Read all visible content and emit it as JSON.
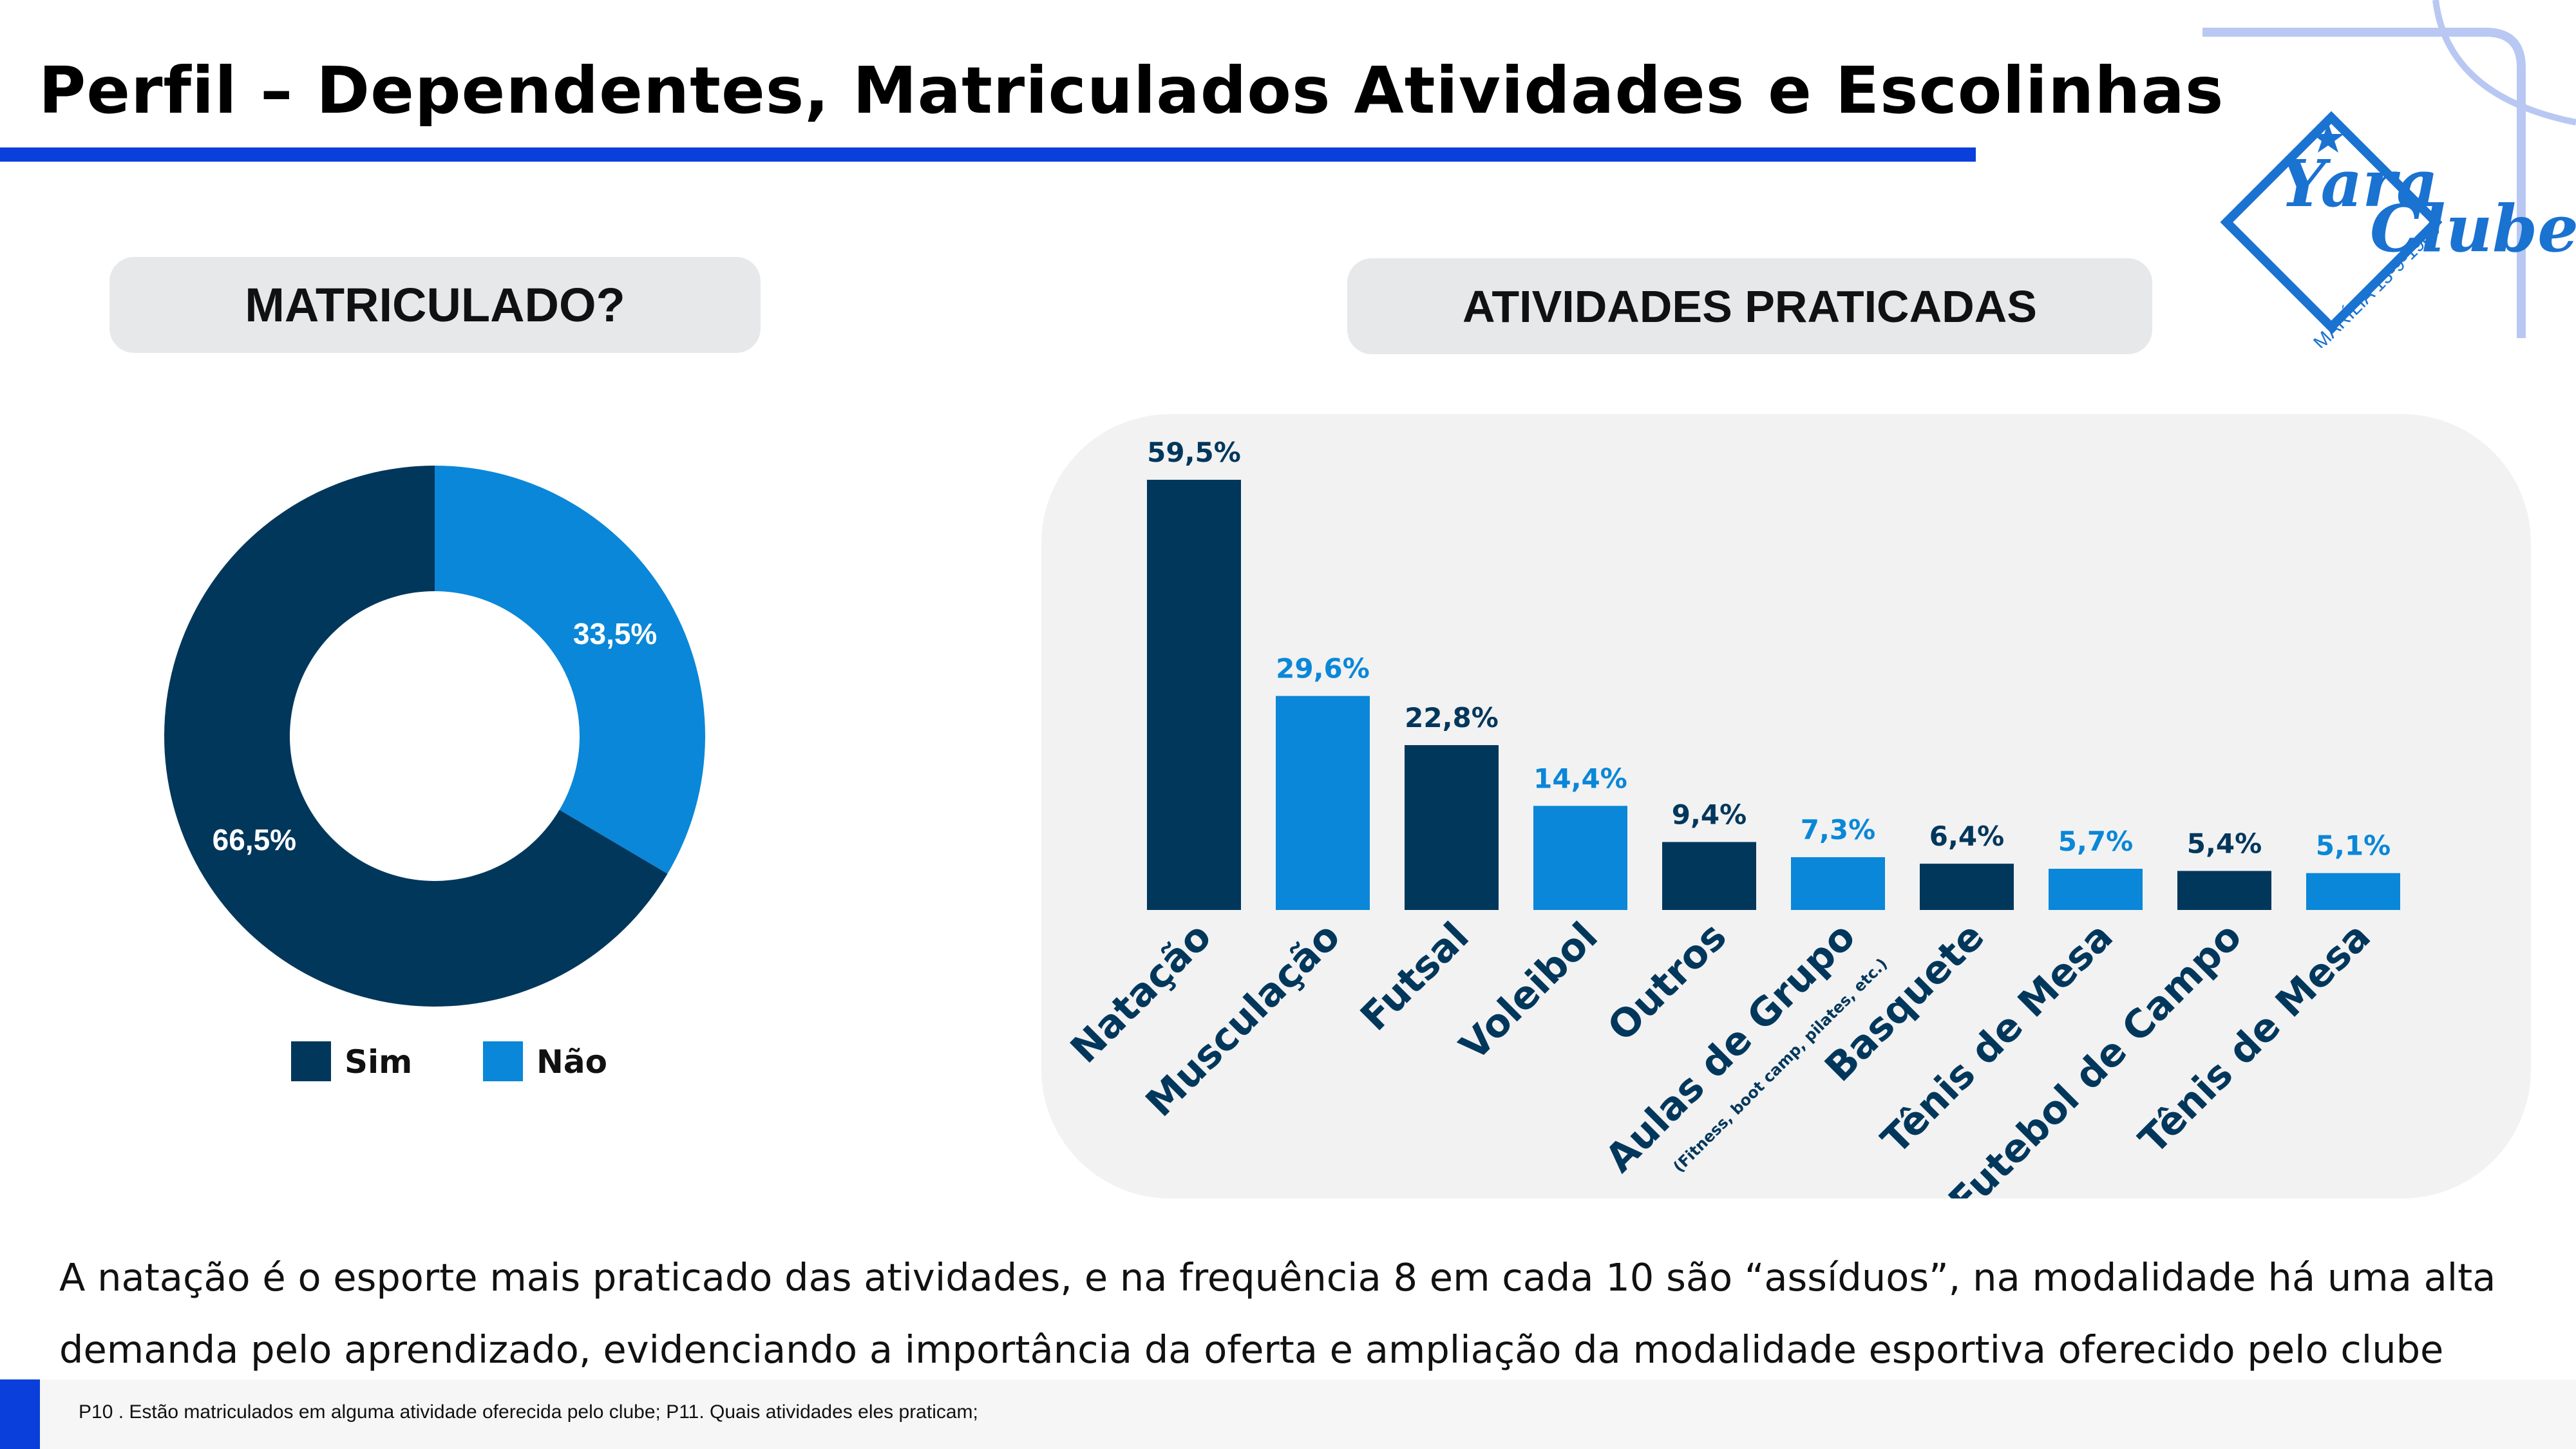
{
  "header": {
    "title": "Perfil – Dependentes, Matriculados Atividades e Escolinhas"
  },
  "logo": {
    "name": "Yara Clube",
    "subtext": "MARÍLIA 13-9-1940"
  },
  "colors": {
    "dark": "#02375c",
    "light": "#0a87d8",
    "accent": "#0b3fdb",
    "panel": "#f2f2f2"
  },
  "left_section": {
    "heading": "MATRICULADO?"
  },
  "right_section": {
    "heading": "ATIVIDADES PRATICADAS"
  },
  "chart_data": [
    {
      "type": "pie",
      "variant": "donut",
      "title": "MATRICULADO?",
      "categories": [
        "Sim",
        "Não"
      ],
      "values": [
        66.5,
        33.5
      ],
      "labels": [
        "66,5%",
        "33,5%"
      ],
      "colors": [
        "#02375c",
        "#0a87d8"
      ],
      "legend": {
        "position": "bottom",
        "entries": [
          "Sim",
          "Não"
        ]
      }
    },
    {
      "type": "bar",
      "title": "ATIVIDADES PRATICADAS",
      "categories": [
        "Natação",
        "Musculação",
        "Futsal",
        "Voleibol",
        "Outros",
        "Aulas de Grupo",
        "Basquete",
        "Tênis de Mesa",
        "Futebol de Campo",
        "Tênis de Mesa"
      ],
      "category_notes": [
        "",
        "",
        "",
        "",
        "",
        "(Fitness, boot camp, pilates, etc.)",
        "",
        "",
        "",
        ""
      ],
      "values": [
        59.5,
        29.6,
        22.8,
        14.4,
        9.4,
        7.3,
        6.4,
        5.7,
        5.4,
        5.1
      ],
      "labels": [
        "59,5%",
        "29,6%",
        "22,8%",
        "14,4%",
        "9,4%",
        "7,3%",
        "6,4%",
        "5,7%",
        "5,4%",
        "5,1%"
      ],
      "colors": [
        "#02375c",
        "#0a87d8",
        "#02375c",
        "#0a87d8",
        "#02375c",
        "#0a87d8",
        "#02375c",
        "#0a87d8",
        "#02375c",
        "#0a87d8"
      ],
      "ylim": [
        0,
        59.5
      ],
      "grid": false,
      "xlabel": "",
      "ylabel": ""
    }
  ],
  "summary": {
    "text": "A natação é o esporte mais praticado das atividades, e na frequência 8 em cada 10  são “assíduos”, na modalidade há uma alta demanda pelo aprendizado, evidenciando a importância da oferta e ampliação da modalidade  esportiva oferecido pelo clube"
  },
  "footnote": {
    "text": "P10 . Estão matriculados em alguma atividade oferecida pelo clube;  P11. Quais atividades eles praticam;"
  }
}
